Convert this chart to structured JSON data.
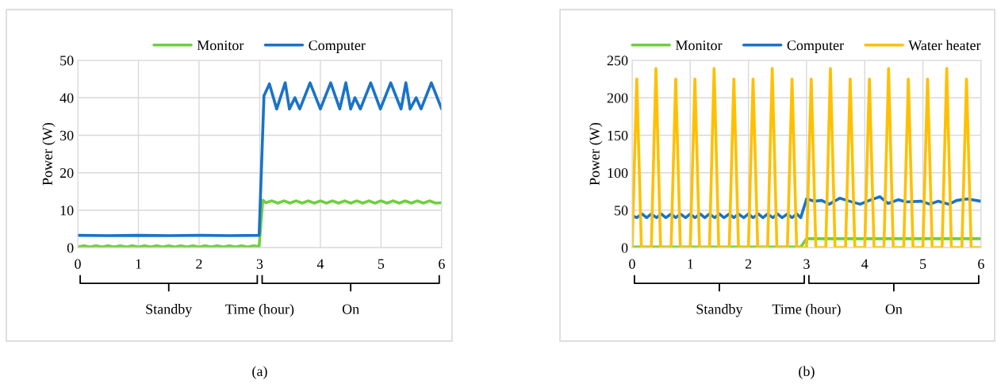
{
  "chart_data": [
    {
      "type": "line",
      "title": "(a)",
      "xlabel": "Time (hour)",
      "ylabel": "Power (W)",
      "xlim": [
        0,
        6
      ],
      "xticks": [
        0,
        1,
        2,
        3,
        4,
        5,
        6
      ],
      "ylim": [
        0,
        50
      ],
      "yticks": [
        0,
        10,
        20,
        30,
        40,
        50
      ],
      "grid": true,
      "legend": "top",
      "annotations": [
        "Standby",
        "On"
      ],
      "series": [
        {
          "name": "Monitor",
          "color": "#6fcf3f",
          "x": [
            0,
            0.1,
            0.2,
            0.3,
            0.4,
            0.5,
            0.6,
            0.7,
            0.8,
            0.9,
            1.0,
            1.1,
            1.2,
            1.3,
            1.4,
            1.5,
            1.6,
            1.7,
            1.8,
            1.9,
            2.0,
            2.1,
            2.2,
            2.3,
            2.4,
            2.5,
            2.6,
            2.7,
            2.8,
            2.9,
            2.99,
            3.05,
            3.1,
            3.2,
            3.3,
            3.4,
            3.5,
            3.6,
            3.7,
            3.8,
            3.9,
            4.0,
            4.1,
            4.2,
            4.3,
            4.4,
            4.5,
            4.6,
            4.7,
            4.8,
            4.9,
            5.0,
            5.1,
            5.2,
            5.3,
            5.4,
            5.5,
            5.6,
            5.7,
            5.8,
            5.9,
            6.0
          ],
          "values": [
            0.2,
            0.5,
            0.2,
            0.5,
            0.2,
            0.5,
            0.2,
            0.5,
            0.2,
            0.5,
            0.2,
            0.5,
            0.2,
            0.5,
            0.2,
            0.5,
            0.2,
            0.5,
            0.2,
            0.5,
            0.2,
            0.5,
            0.2,
            0.5,
            0.2,
            0.5,
            0.2,
            0.5,
            0.2,
            0.5,
            0.3,
            12.7,
            12.0,
            12.5,
            11.9,
            12.5,
            11.9,
            12.5,
            11.9,
            12.5,
            11.9,
            12.5,
            11.9,
            12.5,
            11.9,
            12.5,
            11.9,
            12.5,
            11.9,
            12.5,
            11.9,
            12.5,
            11.9,
            12.5,
            11.9,
            12.5,
            11.9,
            12.5,
            11.9,
            12.5,
            11.9,
            12.0
          ]
        },
        {
          "name": "Computer",
          "color": "#1a73c8",
          "x": [
            0,
            0.5,
            1.0,
            1.5,
            2.0,
            2.5,
            2.99,
            3.07,
            3.16,
            3.28,
            3.42,
            3.49,
            3.58,
            3.66,
            3.83,
            4.0,
            4.17,
            4.32,
            4.42,
            4.5,
            4.57,
            4.66,
            4.83,
            4.99,
            5.16,
            5.33,
            5.41,
            5.48,
            5.58,
            5.66,
            5.83,
            6.0
          ],
          "values": [
            3.3,
            3.2,
            3.3,
            3.2,
            3.3,
            3.2,
            3.3,
            40.5,
            43.7,
            37,
            44,
            37,
            40,
            37,
            44,
            37,
            44,
            37,
            44,
            37,
            40,
            37,
            44,
            37,
            44,
            37,
            44,
            37,
            40,
            37,
            44,
            37
          ]
        }
      ]
    },
    {
      "type": "line",
      "title": "(b)",
      "xlabel": "Time (hour)",
      "ylabel": "Power (W)",
      "xlim": [
        0,
        6
      ],
      "xticks": [
        0,
        1,
        2,
        3,
        4,
        5,
        6
      ],
      "ylim": [
        0,
        250
      ],
      "yticks": [
        0,
        50,
        100,
        150,
        200,
        250
      ],
      "grid": true,
      "legend": "top",
      "annotations": [
        "Standby",
        "On"
      ],
      "series": [
        {
          "name": "Monitor",
          "color": "#6fcf3f",
          "x": [
            0,
            1,
            2,
            2.9,
            3.0,
            4.0,
            5.0,
            6.0
          ],
          "values": [
            1,
            1,
            1,
            1,
            12,
            12,
            12,
            12
          ]
        },
        {
          "name": "Computer",
          "color": "#1a73c8",
          "x": [
            0,
            0.08,
            0.17,
            0.25,
            0.33,
            0.42,
            0.5,
            0.58,
            0.67,
            0.75,
            0.83,
            0.92,
            1,
            1.08,
            1.17,
            1.25,
            1.33,
            1.42,
            1.5,
            1.58,
            1.67,
            1.75,
            1.83,
            1.92,
            2,
            2.08,
            2.17,
            2.25,
            2.33,
            2.42,
            2.5,
            2.58,
            2.67,
            2.75,
            2.83,
            2.9,
            3.0,
            3.13,
            3.26,
            3.39,
            3.57,
            3.74,
            3.92,
            4.08,
            4.26,
            4.4,
            4.58,
            4.71,
            4.97,
            5.12,
            5.26,
            5.45,
            5.58,
            5.76,
            6.0
          ],
          "values": [
            43,
            40,
            45,
            40,
            45,
            40,
            45,
            40,
            45,
            40,
            45,
            40,
            45,
            40,
            45,
            40,
            45,
            40,
            45,
            40,
            45,
            40,
            45,
            40,
            45,
            40,
            45,
            40,
            45,
            40,
            45,
            40,
            45,
            40,
            45,
            40,
            65,
            62,
            63,
            58,
            66,
            62,
            58,
            63,
            68,
            59,
            64,
            61,
            62,
            58,
            62,
            58,
            63,
            65,
            62
          ]
        },
        {
          "name": "Water heater",
          "color": "#ffc000",
          "x": [
            0,
            0.08,
            0.16,
            0.33,
            0.41,
            0.49,
            0.67,
            0.75,
            0.83,
            1.0,
            1.08,
            1.16,
            1.33,
            1.41,
            1.49,
            1.67,
            1.75,
            1.83,
            2.0,
            2.08,
            2.16,
            2.33,
            2.41,
            2.49,
            2.67,
            2.75,
            2.83,
            3.0,
            3.08,
            3.16,
            3.33,
            3.41,
            3.49,
            3.67,
            3.75,
            3.83,
            4.0,
            4.08,
            4.16,
            4.33,
            4.41,
            4.49,
            4.67,
            4.75,
            4.83,
            5.0,
            5.08,
            5.16,
            5.33,
            5.41,
            5.49,
            5.67,
            5.75,
            5.83,
            6.0
          ],
          "values": [
            0,
            225,
            0,
            0,
            239,
            0,
            0,
            225,
            0,
            0,
            225,
            0,
            0,
            239,
            0,
            0,
            225,
            0,
            0,
            225,
            0,
            0,
            239,
            0,
            0,
            225,
            0,
            0,
            225,
            0,
            0,
            239,
            0,
            0,
            225,
            0,
            0,
            225,
            0,
            0,
            239,
            0,
            0,
            225,
            0,
            0,
            225,
            0,
            0,
            239,
            0,
            0,
            225,
            0,
            0
          ]
        }
      ]
    }
  ]
}
